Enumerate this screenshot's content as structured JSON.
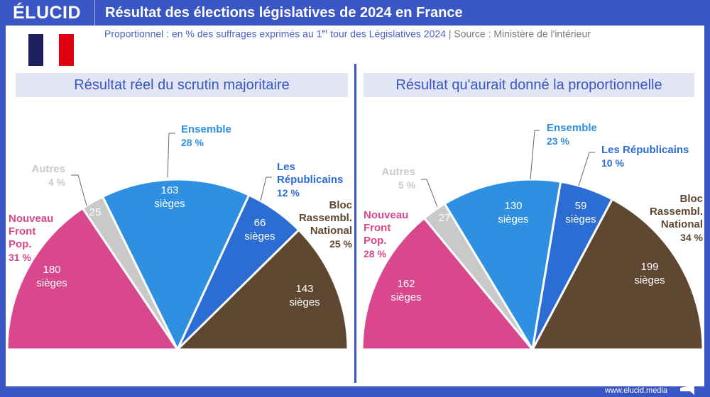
{
  "header": {
    "logo": "ÉLUCID",
    "title": "Résultat des élections législatives de 2024 en France"
  },
  "subtitle": {
    "text1": "Proportionnel : en % des suffrages exprimés au 1",
    "sup": "er",
    "text2": " tour des Législatives 2024",
    "sep": " | ",
    "source": "Source : Ministère de l'intérieur"
  },
  "footer": {
    "url": "www.elucid.media"
  },
  "colors": {
    "nfp": "#d9478c",
    "autres": "#c9c9c9",
    "ensemble": "#2f8fe0",
    "lr": "#2b6dd3",
    "rn": "#5f4731",
    "brand": "#3a56c4"
  },
  "chart_data": [
    {
      "type": "pie",
      "title": "Résultat réel du scrutin majoritaire",
      "shape": "semicircle",
      "series": [
        {
          "name": "Nouveau Front Pop.",
          "label_lines": [
            "Nouveau",
            "Front",
            "Pop."
          ],
          "pct": "31 %",
          "seats": 180,
          "seats_label": "180",
          "unit": "sièges",
          "color": "#d9478c"
        },
        {
          "name": "Autres",
          "label_lines": [
            "Autres"
          ],
          "pct": "4 %",
          "seats": 25,
          "seats_label": "25",
          "unit": "",
          "color": "#c9c9c9"
        },
        {
          "name": "Ensemble",
          "label_lines": [
            "Ensemble"
          ],
          "pct": "28 %",
          "seats": 163,
          "seats_label": "163",
          "unit": "sièges",
          "color": "#2f8fe0"
        },
        {
          "name": "Les Républicains",
          "label_lines": [
            "Les",
            "Républicains"
          ],
          "pct": "12 %",
          "seats": 66,
          "seats_label": "66",
          "unit": "sièges",
          "color": "#2b6dd3"
        },
        {
          "name": "Bloc Rassembl. National",
          "label_lines": [
            "Bloc",
            "Rassembl.",
            "National"
          ],
          "pct": "25 %",
          "seats": 143,
          "seats_label": "143",
          "unit": "sièges",
          "color": "#5f4731"
        }
      ]
    },
    {
      "type": "pie",
      "title": "Résultat qu'aurait donné la proportionnelle",
      "shape": "semicircle",
      "series": [
        {
          "name": "Nouveau Front Pop.",
          "label_lines": [
            "Nouveau",
            "Front",
            "Pop."
          ],
          "pct": "28 %",
          "seats": 162,
          "seats_label": "162",
          "unit": "sièges",
          "color": "#d9478c"
        },
        {
          "name": "Autres",
          "label_lines": [
            "Autres"
          ],
          "pct": "5 %",
          "seats": 27,
          "seats_label": "27",
          "unit": "",
          "color": "#c9c9c9"
        },
        {
          "name": "Ensemble",
          "label_lines": [
            "Ensemble"
          ],
          "pct": "23 %",
          "seats": 130,
          "seats_label": "130",
          "unit": "sièges",
          "color": "#2f8fe0"
        },
        {
          "name": "Les Républicains",
          "label_lines": [
            "Les Républicains"
          ],
          "pct": "10 %",
          "seats": 59,
          "seats_label": "59",
          "unit": "sièges",
          "color": "#2b6dd3"
        },
        {
          "name": "Bloc Rassembl. National",
          "label_lines": [
            "Bloc",
            "Rassembl.",
            "National"
          ],
          "pct": "34 %",
          "seats": 199,
          "seats_label": "199",
          "unit": "sièges",
          "color": "#5f4731"
        }
      ]
    }
  ]
}
